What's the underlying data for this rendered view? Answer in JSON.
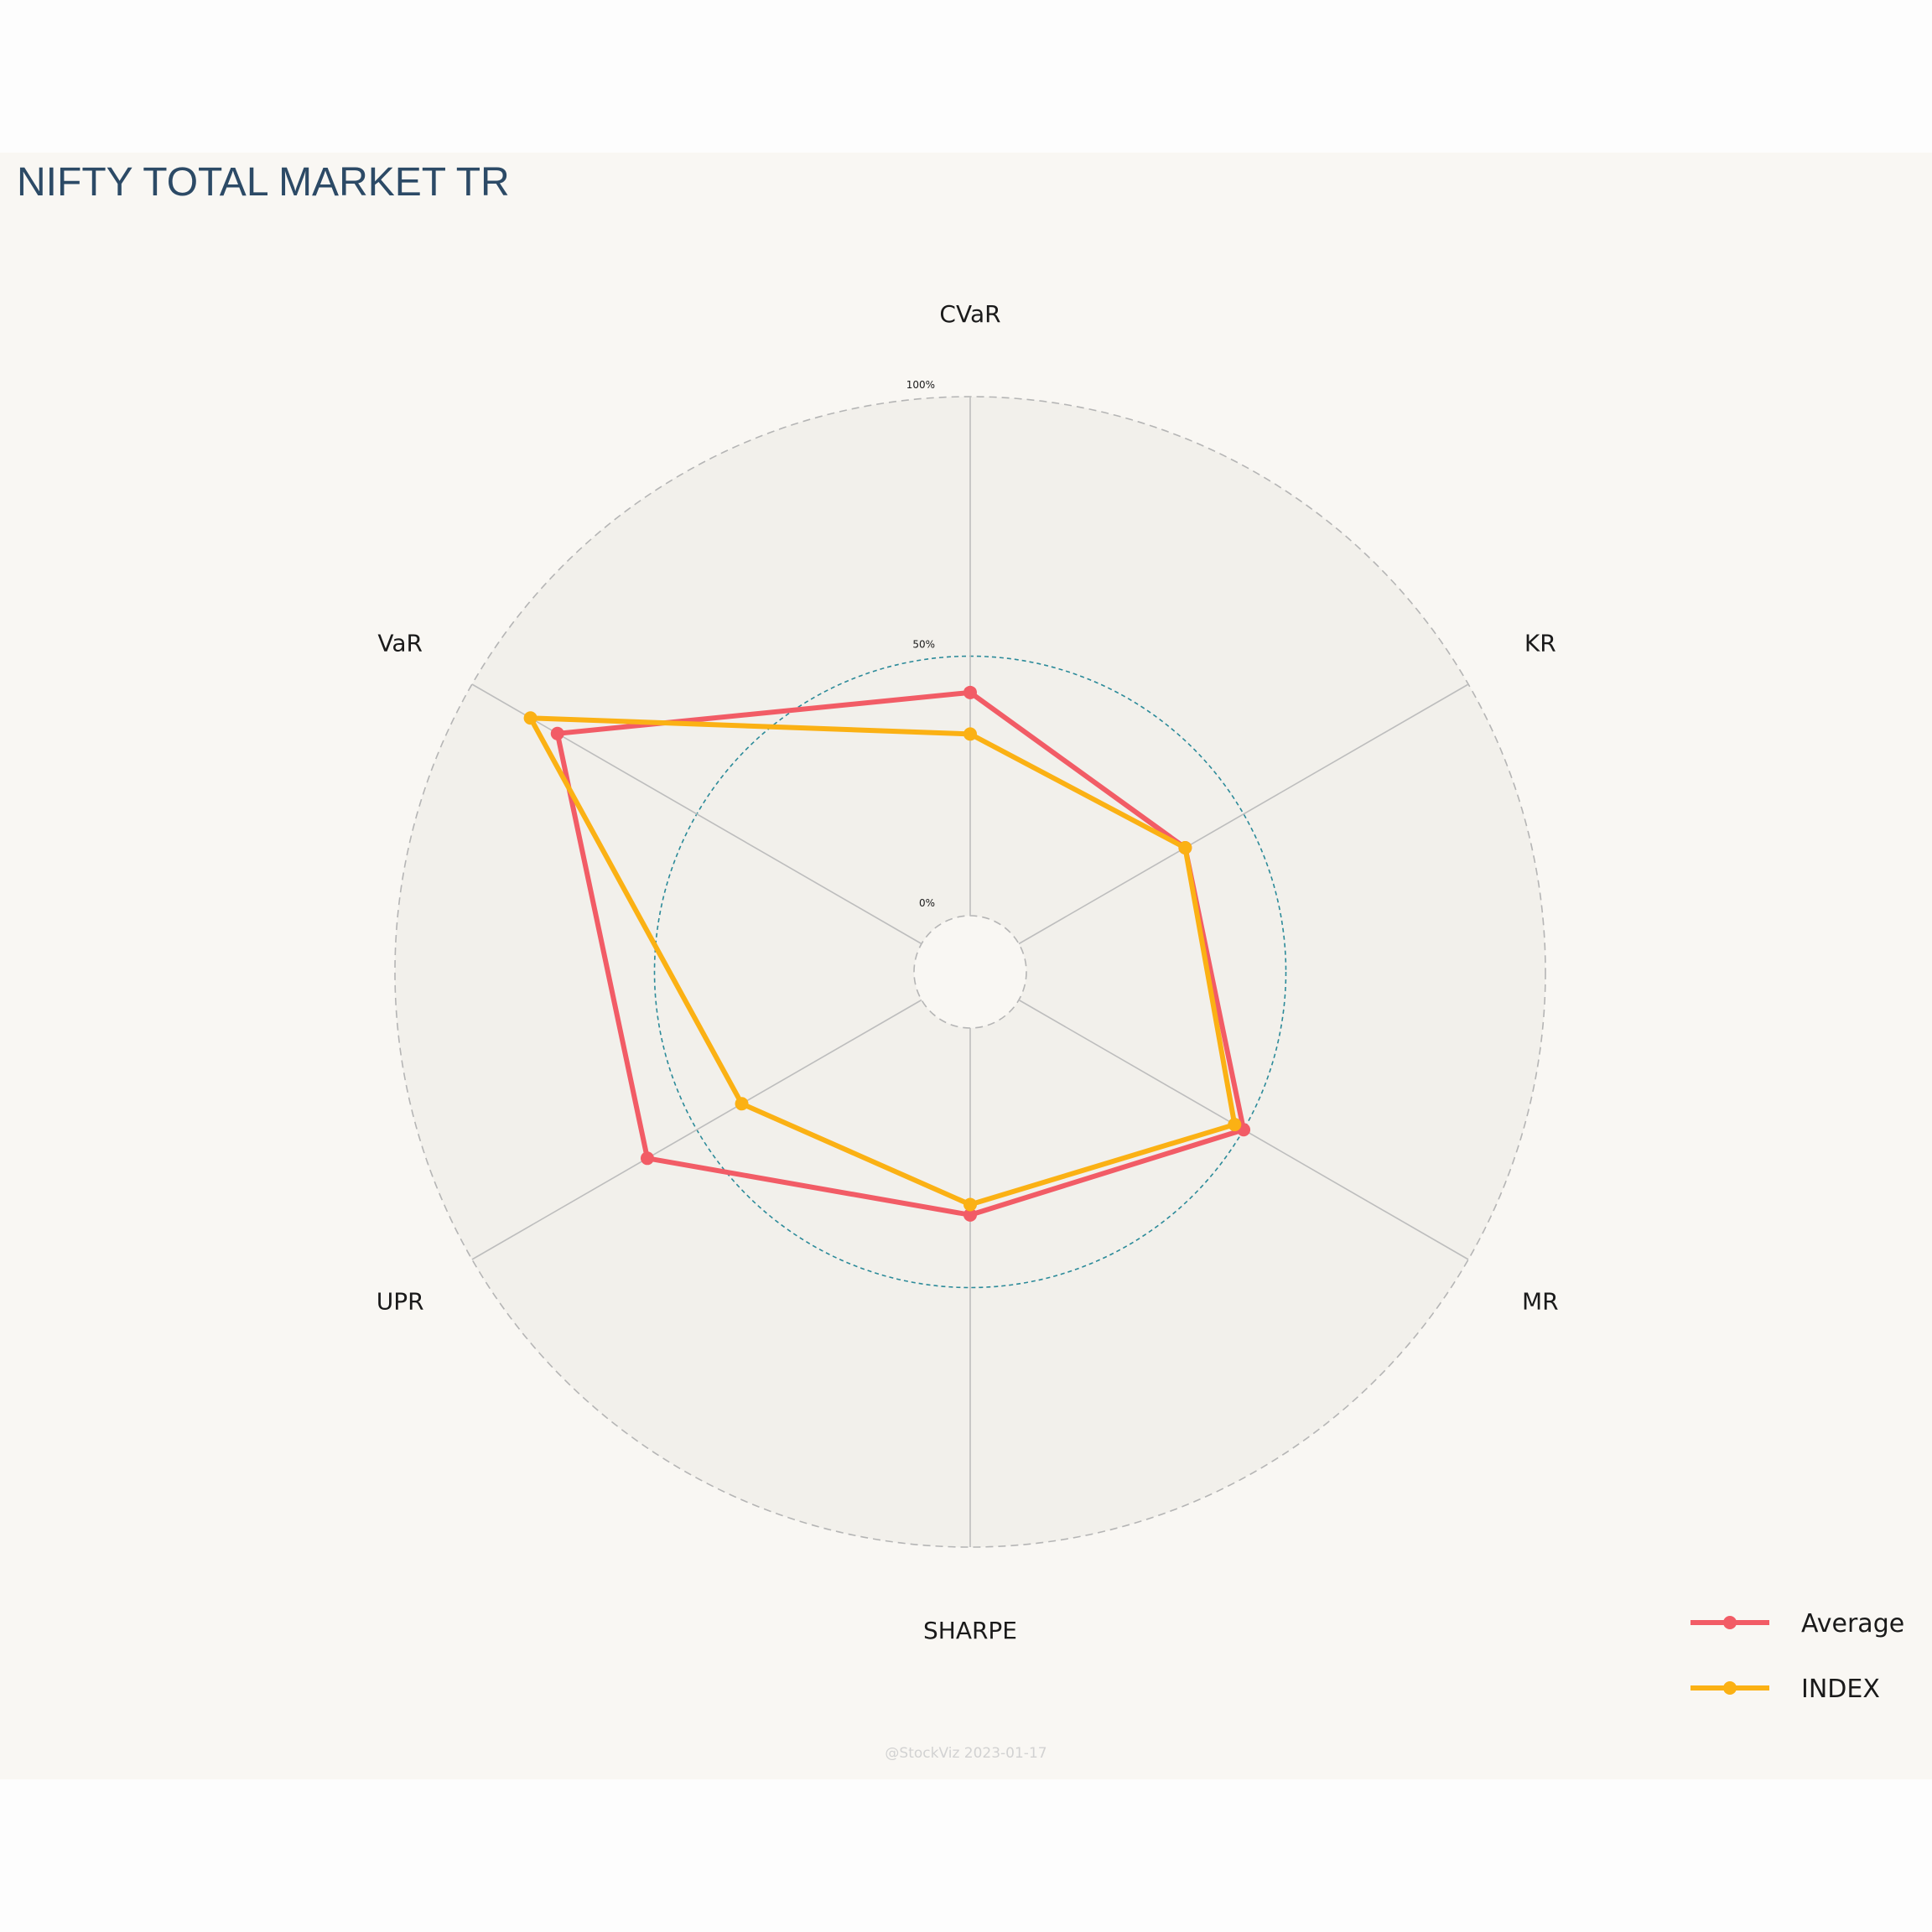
{
  "chart_data": {
    "type": "radar",
    "title": "NIFTY TOTAL MARKET TR",
    "axes": [
      "CVaR",
      "KR",
      "MR",
      "SHARPE",
      "UPR",
      "VaR"
    ],
    "radial_ticks": [
      {
        "value": 0,
        "label": "0%"
      },
      {
        "value": 50,
        "label": "50%"
      },
      {
        "value": 100,
        "label": "100%"
      }
    ],
    "rlim": [
      0,
      100
    ],
    "series": [
      {
        "name": "Average",
        "color": "#f25c66",
        "values": [
          43,
          37,
          50,
          36,
          61,
          81
        ]
      },
      {
        "name": "INDEX",
        "color": "#fbb114",
        "values": [
          35,
          37,
          48,
          34,
          40,
          87
        ]
      }
    ],
    "legend_placement": "bottom-right",
    "watermark": "@StockViz 2023-01-17"
  }
}
